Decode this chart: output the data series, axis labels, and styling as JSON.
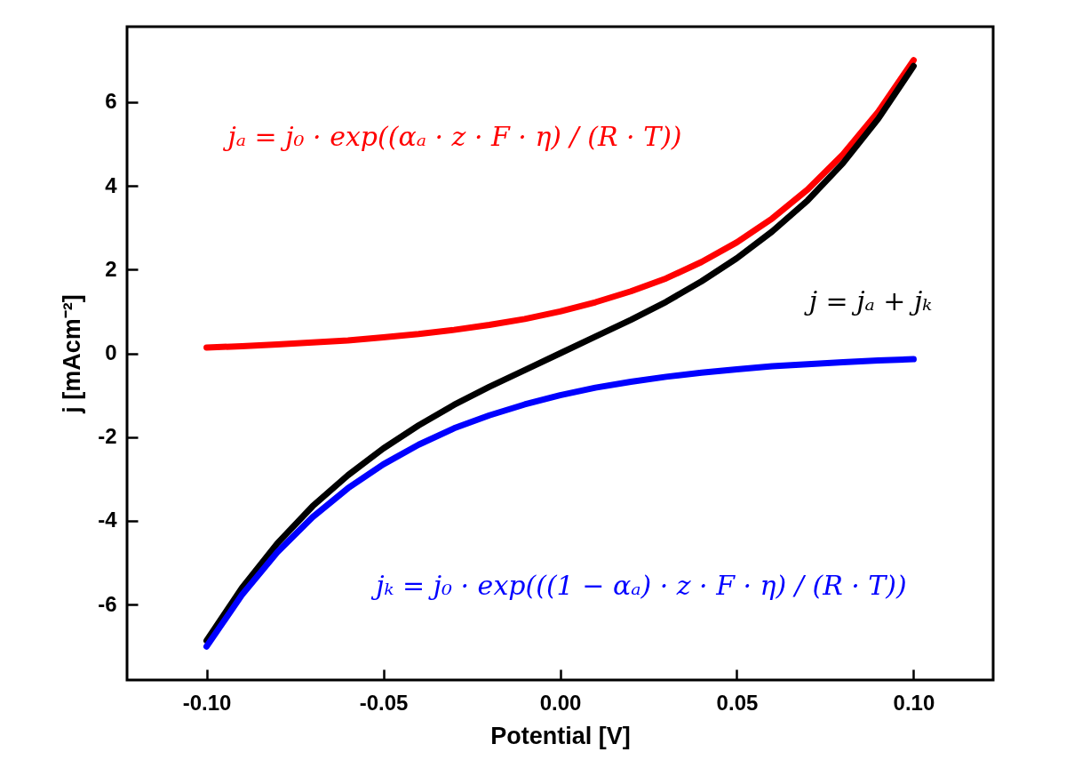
{
  "chart_data": {
    "type": "line",
    "xlabel": "Potential [V]",
    "ylabel": "j [mAcm⁻²]",
    "x": [
      -0.1,
      -0.09,
      -0.08,
      -0.07,
      -0.06,
      -0.05,
      -0.04,
      -0.03,
      -0.02,
      -0.01,
      0,
      0.01,
      0.02,
      0.03,
      0.04,
      0.05,
      0.06,
      0.07,
      0.08,
      0.09,
      0.1
    ],
    "series": [
      {
        "name": "jₐ = j₀ · exp((αₐ · z · F · η) / (R · T))",
        "color": "#ff0000",
        "values": [
          0.14,
          0.17,
          0.21,
          0.26,
          0.31,
          0.38,
          0.46,
          0.56,
          0.68,
          0.82,
          1,
          1.22,
          1.48,
          1.79,
          2.18,
          2.65,
          3.22,
          3.91,
          4.75,
          5.77,
          7.0
        ]
      },
      {
        "name": "j = jₐ + jₖ",
        "color": "#000000",
        "values": [
          -6.86,
          -5.6,
          -4.54,
          -3.65,
          -2.91,
          -2.27,
          -1.72,
          -1.23,
          -0.8,
          -0.4,
          0,
          0.4,
          0.8,
          1.23,
          1.72,
          2.27,
          2.91,
          3.65,
          4.54,
          5.6,
          6.86
        ]
      },
      {
        "name": "jₖ = j₀ · exp(((1 − αₐ) · z · F · η) / (R · T))",
        "color": "#0000ff",
        "values": [
          -7.0,
          -5.77,
          -4.75,
          -3.91,
          -3.22,
          -2.65,
          -2.18,
          -1.79,
          -1.48,
          -1.22,
          -1,
          -0.82,
          -0.68,
          -0.56,
          -0.46,
          -0.38,
          -0.31,
          -0.26,
          -0.21,
          -0.17,
          -0.14
        ]
      }
    ],
    "xlim": [
      -0.1225,
      0.1225
    ],
    "xticks": [
      {
        "value": -0.1,
        "label": "-0.10"
      },
      {
        "value": -0.05,
        "label": "-0.05"
      },
      {
        "value": 0,
        "label": "0.00"
      },
      {
        "value": 0.05,
        "label": "0.05"
      },
      {
        "value": 0.1,
        "label": "0.10"
      }
    ],
    "ylim": [
      -7.8,
      7.8
    ],
    "yticks": [
      -6,
      -4,
      -2,
      0,
      2,
      4,
      6
    ],
    "grid": false,
    "legend": false,
    "marker": "none",
    "line_style": "solid"
  }
}
